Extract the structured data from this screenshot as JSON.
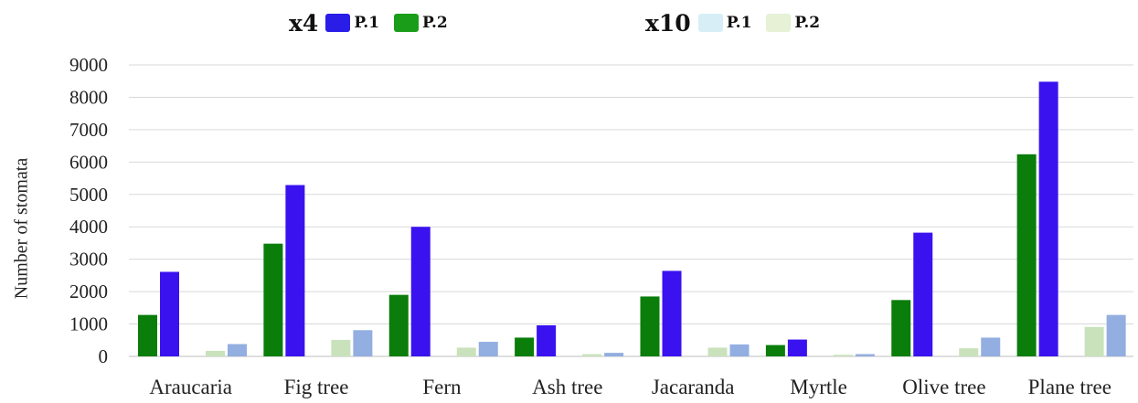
{
  "chart_data": {
    "type": "bar",
    "title": "",
    "xlabel": "",
    "ylabel": "Number of stomata",
    "ylim": [
      0,
      9000
    ],
    "yticks": [
      0,
      1000,
      2000,
      3000,
      4000,
      5000,
      6000,
      7000,
      8000,
      9000
    ],
    "grid": true,
    "legend_placement": "top",
    "categories": [
      "Araucaria",
      "Fig tree",
      "Fern",
      "Ash tree",
      "Jacaranda",
      "Myrtle",
      "Olive tree",
      "Plane tree"
    ],
    "series": [
      {
        "group": "x4",
        "name": "P.2",
        "color": "#0a7d0a",
        "values": [
          1280,
          3480,
          1900,
          580,
          1850,
          350,
          1740,
          6240
        ]
      },
      {
        "group": "x4",
        "name": "P.1",
        "color": "#3a12f0",
        "values": [
          2610,
          5290,
          4000,
          960,
          2640,
          520,
          3820,
          8480
        ]
      },
      {
        "group": "x10",
        "name": "P.2",
        "color": "#c9e2bb",
        "values": [
          170,
          510,
          270,
          70,
          270,
          50,
          250,
          910
        ]
      },
      {
        "group": "x10",
        "name": "P.1",
        "color": "#93aee0",
        "values": [
          380,
          810,
          450,
          110,
          370,
          70,
          580,
          1280
        ]
      }
    ]
  },
  "legend": {
    "groups": [
      {
        "title": "x4",
        "items": [
          {
            "label": "P.1",
            "color": "#2b1de8"
          },
          {
            "label": "P.2",
            "color": "#1a9e1a"
          }
        ]
      },
      {
        "title": "x10",
        "items": [
          {
            "label": "P.1",
            "color": "#d7eef6"
          },
          {
            "label": "P.2",
            "color": "#e6f1d6"
          }
        ]
      }
    ]
  }
}
